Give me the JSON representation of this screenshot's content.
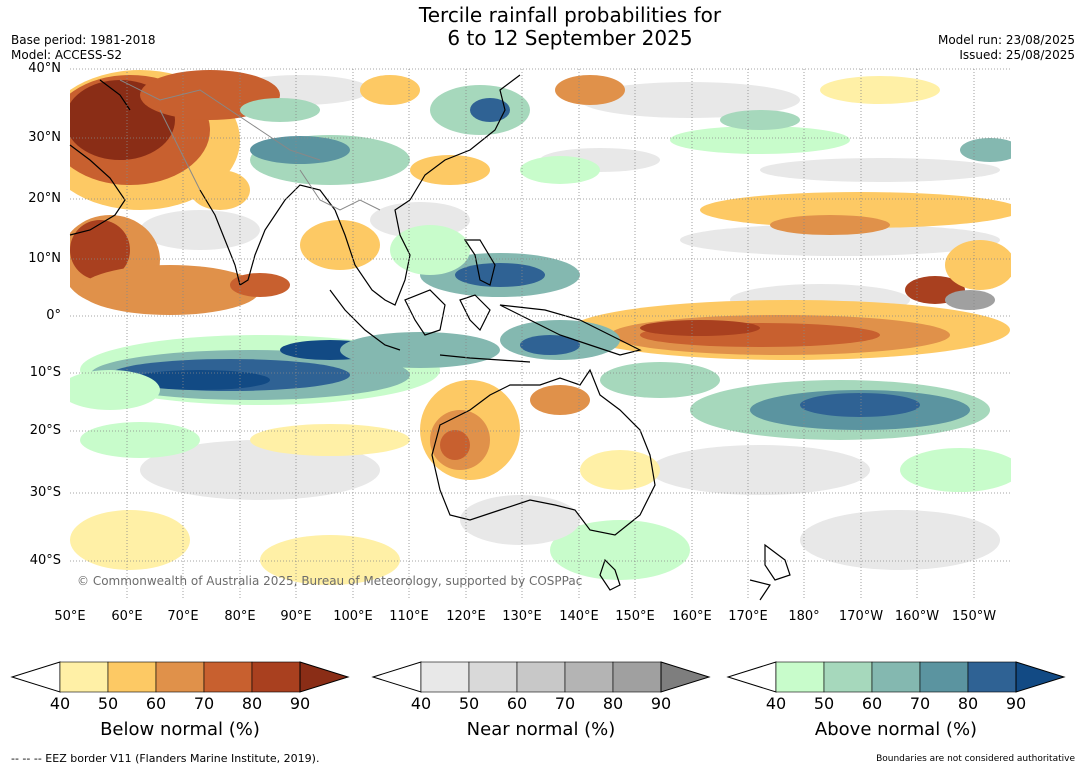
{
  "title_line1": "Tercile rainfall probabilities for",
  "title_line2": "6 to 12 September 2025",
  "base_period": "Base period: 1981-2018",
  "model": "Model: ACCESS-S2",
  "model_run": "Model run: 23/08/2025",
  "issued": "Issued: 25/08/2025",
  "copyright": "© Commonwealth of Australia 2025, Bureau of Meteorology, supported by COSPPac",
  "lat_labels": [
    "40°N",
    "30°N",
    "20°N",
    "10°N",
    "0°",
    "10°S",
    "20°S",
    "30°S",
    "40°S"
  ],
  "lon_labels": [
    "50°E",
    "60°E",
    "70°E",
    "80°E",
    "90°E",
    "100°E",
    "110°E",
    "120°E",
    "130°E",
    "140°E",
    "150°E",
    "160°E",
    "170°E",
    "180°",
    "170°W",
    "160°W",
    "150°W"
  ],
  "colorbars": [
    {
      "label": "Below normal (%)",
      "ticks": [
        "40",
        "50",
        "60",
        "70",
        "80",
        "90"
      ],
      "colors": [
        "#fff0a6",
        "#fdc964",
        "#e0914a",
        "#c8602f",
        "#a9401f",
        "#8a2d16"
      ]
    },
    {
      "label": "Near normal (%)",
      "ticks": [
        "40",
        "50",
        "60",
        "70",
        "80",
        "90"
      ],
      "colors": [
        "#e8e8e8",
        "#d9d9d9",
        "#c8c8c8",
        "#b4b4b4",
        "#a0a0a0",
        "#7e7e7e"
      ]
    },
    {
      "label": "Above normal (%)",
      "ticks": [
        "40",
        "50",
        "60",
        "70",
        "80",
        "90"
      ],
      "colors": [
        "#c8fccb",
        "#a6d8bc",
        "#84b8b0",
        "#5b94a0",
        "#2f6294",
        "#124a84"
      ]
    }
  ],
  "footer_left": "--  --  -- EEZ border V11 (Flanders Marine Institute, 2019).",
  "footer_right": "Boundaries are not considered authoritative",
  "colors": {
    "land_outline": "#000000",
    "border": "#888888",
    "grid": "#888888"
  }
}
